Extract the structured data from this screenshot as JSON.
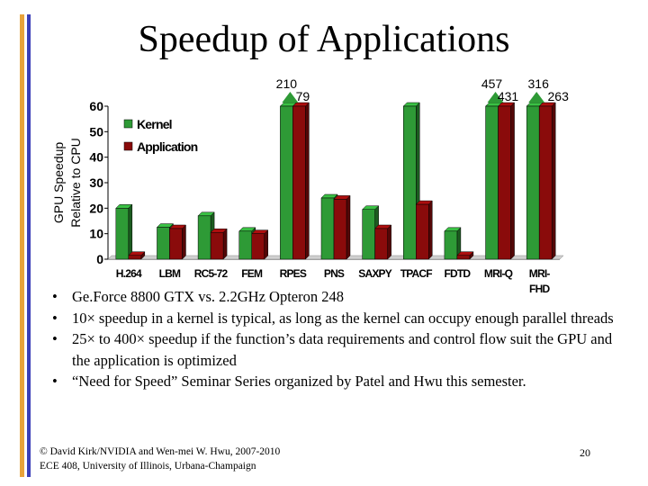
{
  "slide": {
    "title": "Speedup of Applications",
    "bullets": [
      "Ge.Force 8800 GTX vs. 2.2GHz Opteron 248",
      "10× speedup in a kernel is typical, as long as the kernel can occupy enough parallel threads",
      "25× to 400× speedup if the function’s data requirements and control flow suit the GPU and the application is optimized",
      "“Need for Speed” Seminar Series organized by Patel and Hwu this semester."
    ],
    "bullet_glyph": "•",
    "footer_line1": "© David Kirk/NVIDIA and Wen-mei W. Hwu, 2007-2010",
    "footer_line2": "ECE 408, University of Illinois, Urbana-Champaign",
    "page_number": "20"
  },
  "colors": {
    "kernel": "#2e9a36",
    "application": "#8a0b0b",
    "arrow": "#2e9a36",
    "accent_orange": "#e8a33b",
    "accent_blue": "#3b3fb8"
  },
  "chart_data": {
    "type": "bar",
    "ylabel_line1": "GPU Speedup",
    "ylabel_line2": "Relative to CPU",
    "ylim": [
      0,
      60
    ],
    "yticks": [
      0,
      10,
      20,
      30,
      40,
      50,
      60
    ],
    "legend_position": "top-left",
    "categories": [
      [
        "H.264"
      ],
      [
        "LBM"
      ],
      [
        "RC5-72"
      ],
      [
        "FEM"
      ],
      [
        "RPES"
      ],
      [
        "PNS"
      ],
      [
        "SAXPY"
      ],
      [
        "TPACF"
      ],
      [
        "FDTD"
      ],
      [
        "MRI-Q"
      ],
      [
        "MRI-",
        "FHD"
      ]
    ],
    "series": [
      {
        "name": "Kernel",
        "values": [
          20,
          12.5,
          17,
          11,
          60,
          24,
          19.5,
          60,
          11,
          60,
          60
        ]
      },
      {
        "name": "Application",
        "values": [
          1.5,
          12,
          10.5,
          10,
          60,
          23.5,
          12,
          21.5,
          1.5,
          60,
          60
        ]
      }
    ],
    "off_scale_labels": [
      {
        "category": 4,
        "series": 0,
        "value": "210"
      },
      {
        "category": 4,
        "series": 1,
        "value": "79"
      },
      {
        "category": 9,
        "series": 0,
        "value": "457"
      },
      {
        "category": 9,
        "series": 1,
        "value": "431"
      },
      {
        "category": 10,
        "series": 0,
        "value": "316"
      },
      {
        "category": 10,
        "series": 1,
        "value": "263"
      }
    ]
  }
}
